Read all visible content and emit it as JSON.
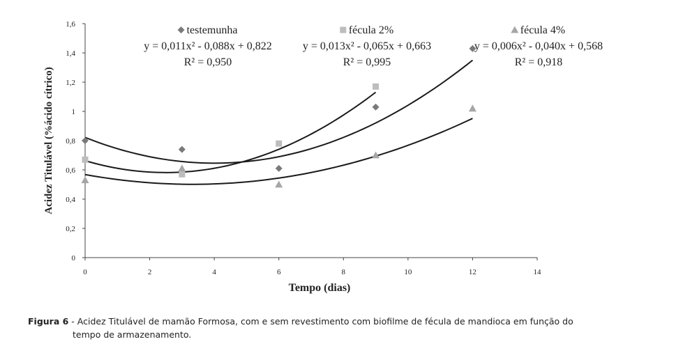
{
  "chart_data": {
    "type": "scatter",
    "xlabel": "Tempo (dias)",
    "ylabel": "Acidez Titulável (%ácido cítrico)",
    "xlim": [
      0,
      14
    ],
    "ylim": [
      0,
      1.6
    ],
    "xticks": [
      0,
      2,
      4,
      6,
      8,
      10,
      12,
      14
    ],
    "xtick_labels": [
      "0",
      "2",
      "4",
      "6",
      "8",
      "10",
      "12",
      "14"
    ],
    "yticks": [
      0,
      0.2,
      0.4,
      0.6,
      0.8,
      1.0,
      1.2,
      1.4,
      1.6
    ],
    "ytick_labels": [
      "0",
      "0,2",
      "0,4",
      "0,6",
      "0,8",
      "1",
      "1,2",
      "1,4",
      "1,6"
    ],
    "grid": false,
    "legend_placement": "top",
    "series": [
      {
        "name": "testemunha",
        "marker": "diamond",
        "color": "#7a7a7a",
        "x": [
          0,
          3,
          6,
          9,
          12
        ],
        "y": [
          0.8,
          0.74,
          0.61,
          1.03,
          1.43
        ],
        "fit": {
          "a": 0.011,
          "b": -0.088,
          "c": 0.822,
          "x_range": [
            0,
            12
          ]
        },
        "equation": "y = 0,011x² - 0,088x + 0,822",
        "r2": "R² = 0,950"
      },
      {
        "name": "fécula 2%",
        "marker": "square",
        "color": "#bdbdbd",
        "x": [
          0,
          3,
          6,
          9
        ],
        "y": [
          0.67,
          0.57,
          0.78,
          1.17
        ],
        "fit": {
          "a": 0.013,
          "b": -0.065,
          "c": 0.663,
          "x_range": [
            0,
            9
          ]
        },
        "equation": "y = 0,013x² - 0,065x + 0,663",
        "r2": "R² = 0,995"
      },
      {
        "name": "fécula 4%",
        "marker": "triangle",
        "color": "#a6a6a6",
        "x": [
          0,
          3,
          6,
          9,
          12
        ],
        "y": [
          0.53,
          0.61,
          0.5,
          0.7,
          1.02
        ],
        "fit": {
          "a": 0.006,
          "b": -0.04,
          "c": 0.568,
          "x_range": [
            0,
            12
          ]
        },
        "equation": "y = 0,006x² - 0,040x + 0,568",
        "r2": "R² = 0,918"
      }
    ]
  },
  "caption": {
    "label": "Figura 6",
    "text_line1": " - Acidez Titulável de mamão Formosa, com e sem revestimento com biofilme de fécula de mandioca em função do",
    "text_line2": "tempo de armazenamento."
  }
}
